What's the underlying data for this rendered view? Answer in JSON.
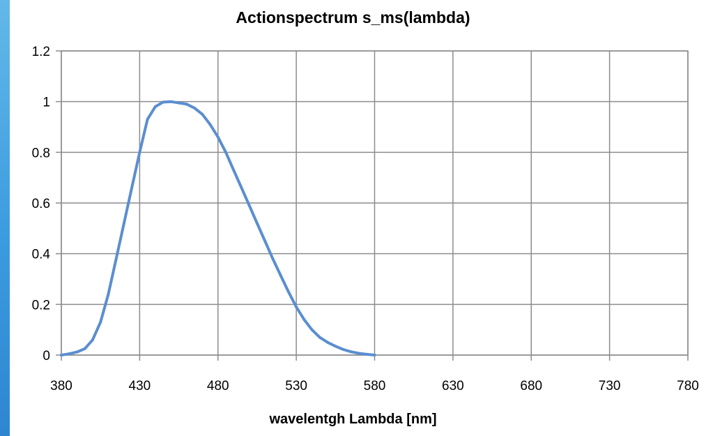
{
  "chart_data": {
    "type": "line",
    "title": "Actionspectrum s_ms(lambda)",
    "xlabel": "wavelentgh Lambda [nm]",
    "ylabel": "",
    "xlim": [
      380,
      780
    ],
    "ylim": [
      0,
      1.2
    ],
    "x_ticks": [
      "380",
      "430",
      "480",
      "530",
      "580",
      "630",
      "680",
      "730",
      "780"
    ],
    "y_ticks": [
      "0",
      "0.2",
      "0.4",
      "0.6",
      "0.8",
      "1",
      "1.2"
    ],
    "grid": true,
    "legend": "none",
    "series": [
      {
        "color": "#5b8ed0",
        "x": [
          380,
          385,
          390,
          395,
          400,
          405,
          410,
          415,
          420,
          425,
          430,
          435,
          440,
          445,
          450,
          455,
          460,
          465,
          470,
          475,
          480,
          485,
          490,
          495,
          500,
          505,
          510,
          515,
          520,
          525,
          530,
          535,
          540,
          545,
          550,
          555,
          560,
          565,
          570,
          575,
          580
        ],
        "values": [
          0.0,
          0.005,
          0.012,
          0.025,
          0.06,
          0.13,
          0.24,
          0.38,
          0.52,
          0.66,
          0.8,
          0.93,
          0.98,
          0.998,
          1.0,
          0.995,
          0.99,
          0.975,
          0.95,
          0.91,
          0.86,
          0.8,
          0.73,
          0.66,
          0.59,
          0.52,
          0.45,
          0.38,
          0.315,
          0.25,
          0.19,
          0.14,
          0.1,
          0.07,
          0.05,
          0.035,
          0.022,
          0.013,
          0.007,
          0.003,
          0.0
        ]
      }
    ]
  }
}
